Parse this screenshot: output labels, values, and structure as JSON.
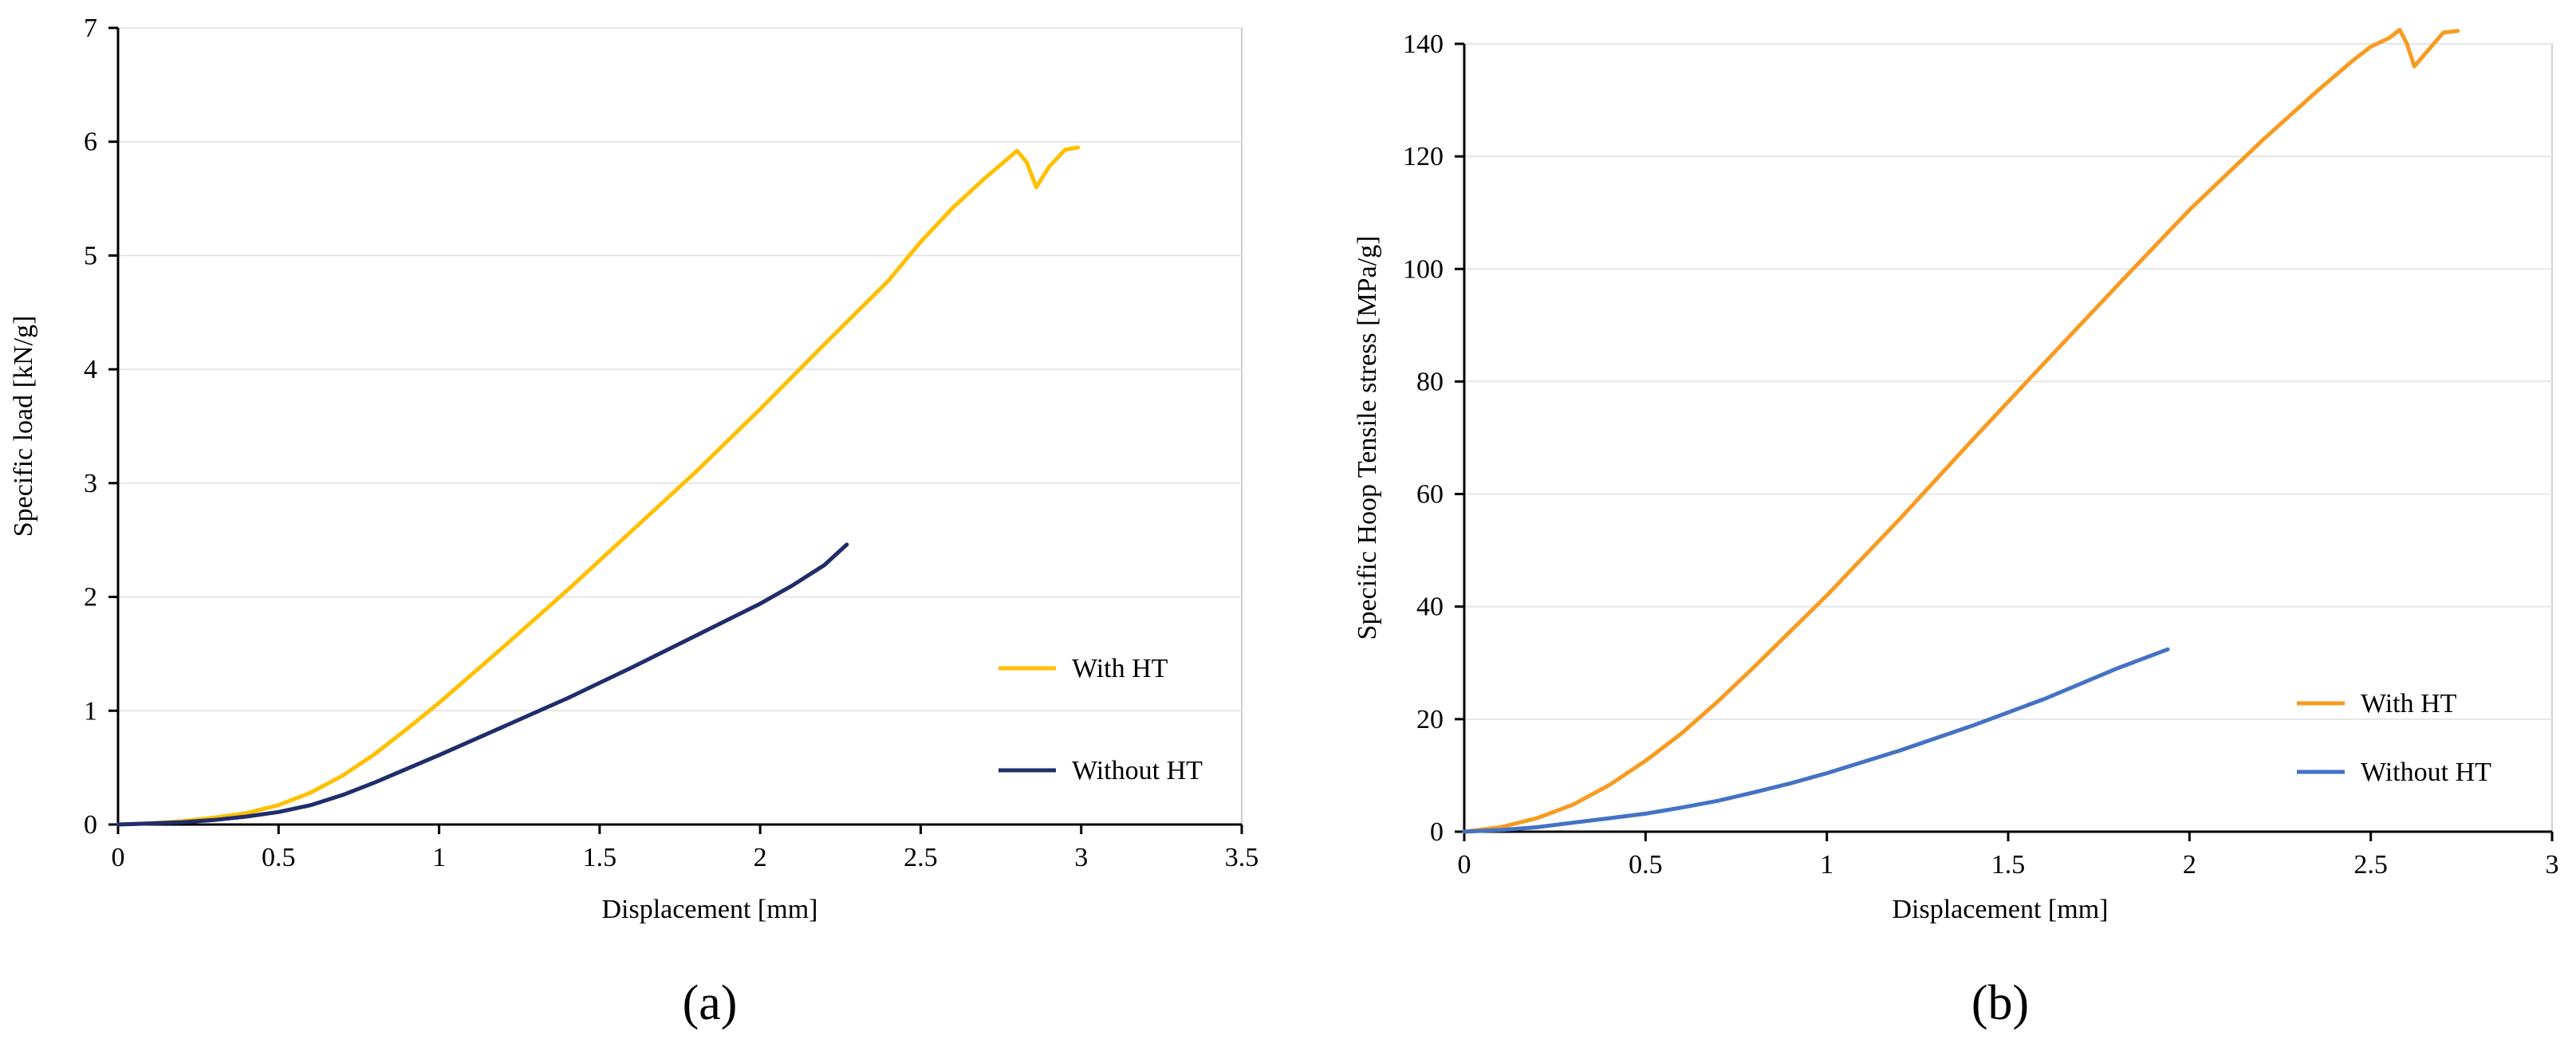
{
  "chart_data": [
    {
      "type": "line",
      "panel_label": "(a)",
      "title": "",
      "xlabel": "Displacement [mm]",
      "ylabel": "Specific load [kN/g]",
      "xlim": [
        0,
        3.5
      ],
      "ylim": [
        0,
        7
      ],
      "xticks": [
        0,
        0.5,
        1,
        1.5,
        2,
        2.5,
        3,
        3.5
      ],
      "xtick_labels": [
        "0",
        "0.5",
        "1",
        "1.5",
        "2",
        "2.5",
        "3",
        "3.5"
      ],
      "yticks": [
        0,
        1,
        2,
        3,
        4,
        5,
        6,
        7
      ],
      "ytick_labels": [
        "0",
        "1",
        "2",
        "3",
        "4",
        "5",
        "6",
        "7"
      ],
      "grid": true,
      "legend_position": "lower-right",
      "series": [
        {
          "name": "With HT",
          "color": "#FFC000",
          "x": [
            0,
            0.1,
            0.2,
            0.3,
            0.4,
            0.5,
            0.6,
            0.7,
            0.8,
            0.9,
            1.0,
            1.2,
            1.4,
            1.6,
            1.8,
            2.0,
            2.2,
            2.4,
            2.5,
            2.6,
            2.7,
            2.75,
            2.8,
            2.83,
            2.86,
            2.9,
            2.95,
            2.99
          ],
          "y": [
            0,
            0.01,
            0.03,
            0.06,
            0.1,
            0.17,
            0.28,
            0.43,
            0.62,
            0.84,
            1.07,
            1.56,
            2.06,
            2.58,
            3.1,
            3.65,
            4.22,
            4.78,
            5.12,
            5.42,
            5.68,
            5.8,
            5.92,
            5.82,
            5.6,
            5.78,
            5.93,
            5.95
          ]
        },
        {
          "name": "Without HT",
          "color": "#1F2D6B",
          "x": [
            0,
            0.1,
            0.2,
            0.3,
            0.4,
            0.5,
            0.6,
            0.7,
            0.8,
            0.9,
            1.0,
            1.2,
            1.4,
            1.6,
            1.8,
            2.0,
            2.1,
            2.2,
            2.27
          ],
          "y": [
            0,
            0.01,
            0.02,
            0.04,
            0.07,
            0.11,
            0.17,
            0.26,
            0.37,
            0.49,
            0.61,
            0.86,
            1.11,
            1.38,
            1.66,
            1.94,
            2.1,
            2.28,
            2.46
          ]
        }
      ]
    },
    {
      "type": "line",
      "panel_label": "(b)",
      "title": "",
      "xlabel": "Displacement [mm]",
      "ylabel": "Specific Hoop Tensile stress [MPa/g]",
      "xlim": [
        0,
        3
      ],
      "ylim": [
        0,
        140
      ],
      "xticks": [
        0,
        0.5,
        1,
        1.5,
        2,
        2.5,
        3
      ],
      "xtick_labels": [
        "0",
        "0.5",
        "1",
        "1.5",
        "2",
        "2.5",
        "3"
      ],
      "yticks": [
        0,
        20,
        40,
        60,
        80,
        100,
        120,
        140
      ],
      "ytick_labels": [
        "0",
        "20",
        "40",
        "60",
        "80",
        "100",
        "120",
        "140"
      ],
      "grid": true,
      "legend_position": "lower-right",
      "series": [
        {
          "name": "With HT",
          "color": "#F79B21",
          "x": [
            0,
            0.1,
            0.2,
            0.3,
            0.4,
            0.5,
            0.6,
            0.7,
            0.8,
            1.0,
            1.2,
            1.4,
            1.6,
            1.8,
            2.0,
            2.2,
            2.35,
            2.45,
            2.5,
            2.55,
            2.58,
            2.6,
            2.62,
            2.66,
            2.7,
            2.74
          ],
          "y": [
            0,
            0.8,
            2.4,
            4.8,
            8.3,
            12.6,
            17.5,
            23.2,
            29.3,
            42,
            55.5,
            69.5,
            83.3,
            97,
            110.5,
            122.8,
            131.5,
            137,
            139.5,
            141,
            142.5,
            140,
            136,
            139,
            142,
            142.3
          ]
        },
        {
          "name": "Without HT",
          "color": "#4472C4",
          "x": [
            0,
            0.1,
            0.2,
            0.3,
            0.4,
            0.5,
            0.6,
            0.7,
            0.8,
            0.9,
            1.0,
            1.2,
            1.4,
            1.6,
            1.8,
            1.94
          ],
          "y": [
            0,
            0.3,
            0.8,
            1.6,
            2.4,
            3.2,
            4.3,
            5.5,
            7,
            8.6,
            10.4,
            14.4,
            18.8,
            23.6,
            29,
            32.4
          ]
        }
      ]
    }
  ]
}
